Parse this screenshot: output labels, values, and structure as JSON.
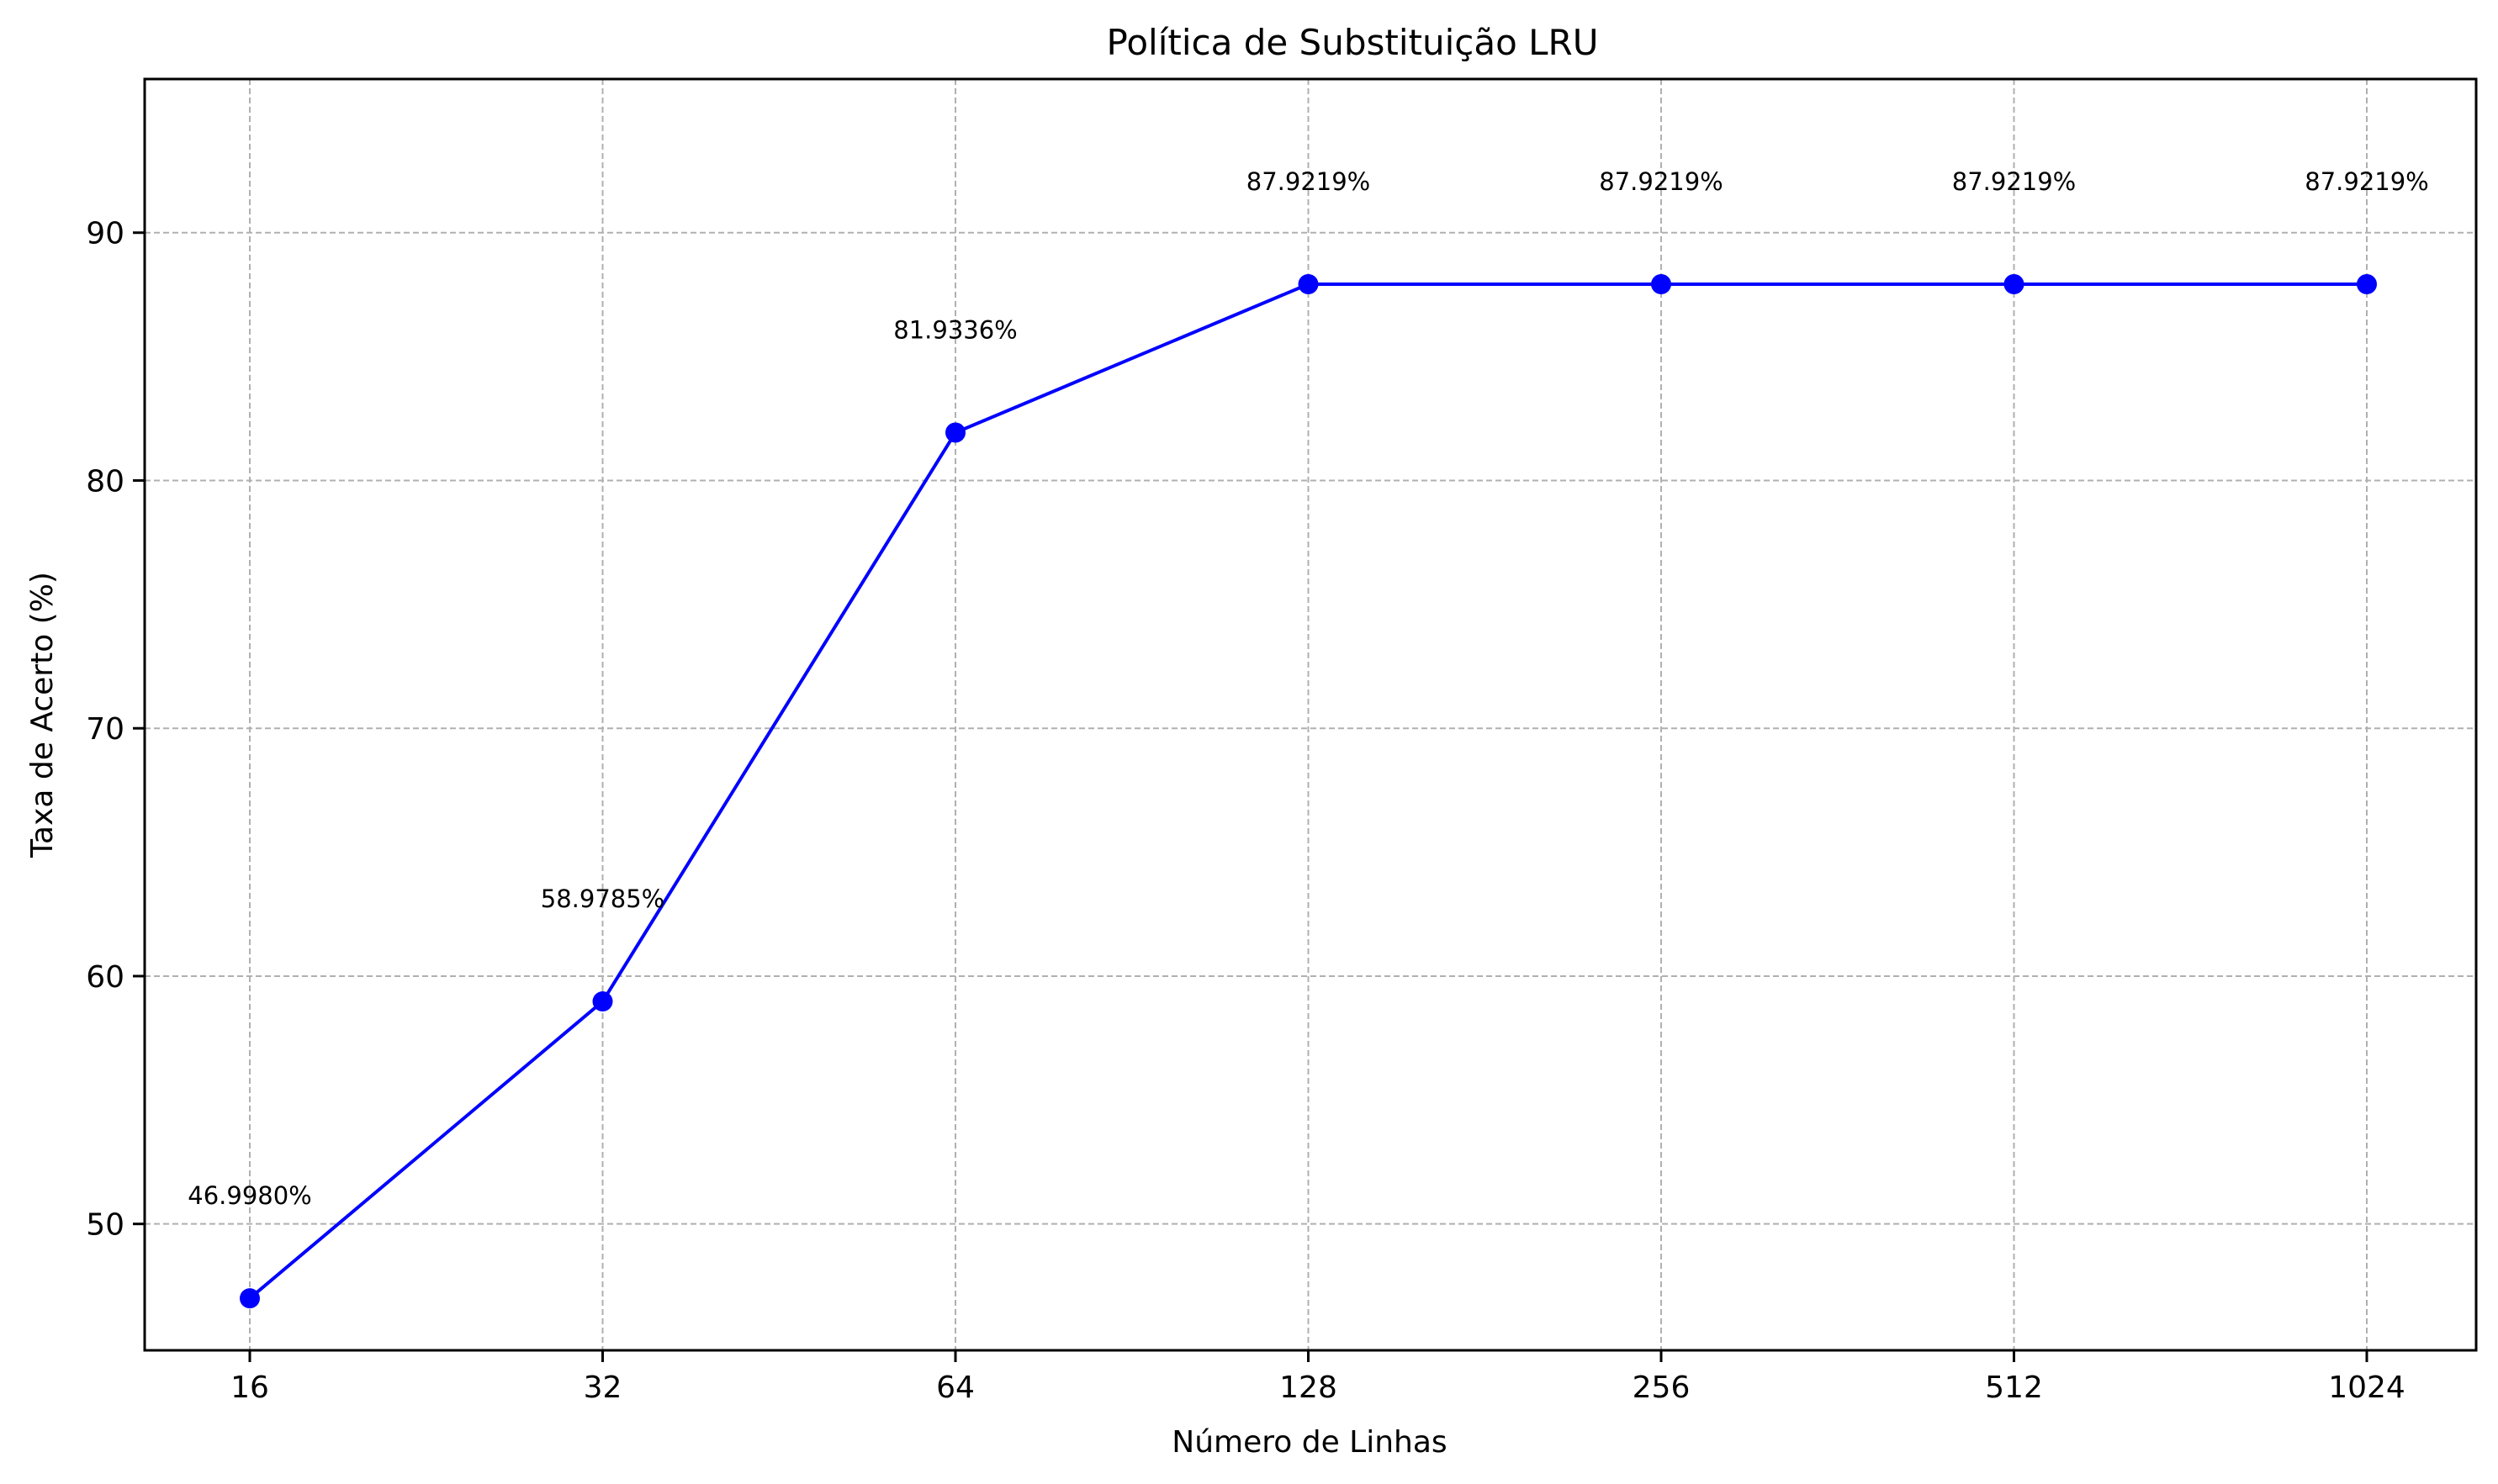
{
  "chart_data": {
    "type": "line",
    "title": "Política de Substituição LRU",
    "xlabel": "Número de Linhas",
    "ylabel": "Taxa de Acerto (%)",
    "x": [
      "16",
      "32",
      "64",
      "128",
      "256",
      "512",
      "1024"
    ],
    "series": [
      {
        "values": [
          46.998,
          58.9785,
          81.9336,
          87.9219,
          87.9219,
          87.9219,
          87.9219
        ],
        "labels": [
          "46.9980%",
          "58.9785%",
          "81.9336%",
          "87.9219%",
          "87.9219%",
          "87.9219%",
          "87.9219%"
        ],
        "color": "#0000ff",
        "marker": "circle"
      }
    ],
    "yticks": [
      "50",
      "60",
      "70",
      "80",
      "90"
    ],
    "ylim": [
      44.9,
      96.2
    ],
    "grid": true,
    "legend": "none"
  }
}
